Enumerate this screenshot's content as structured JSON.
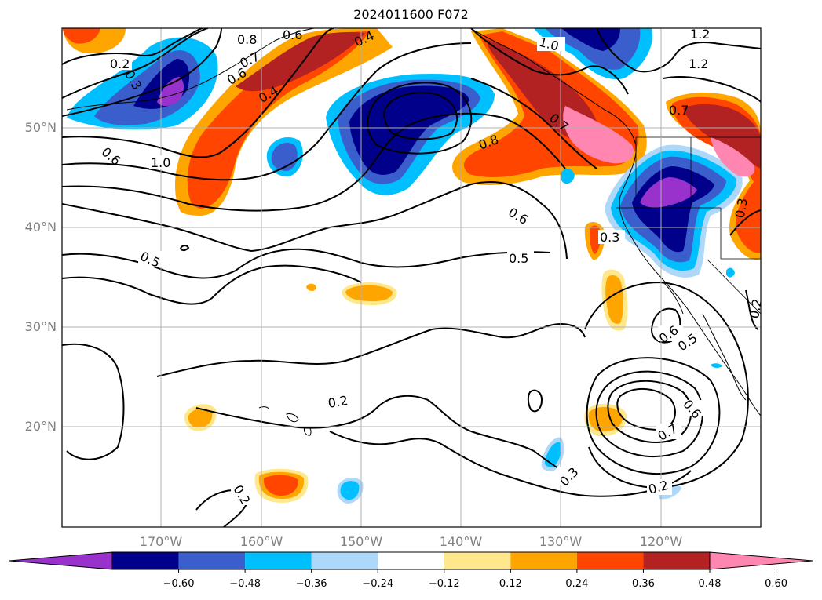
{
  "title": "2024011600 F072",
  "map": {
    "lat_labels": [
      "50°N",
      "40°N",
      "30°N",
      "20°N"
    ],
    "lon_labels": [
      "170°W",
      "160°W",
      "150°W",
      "140°W",
      "130°W",
      "120°W"
    ],
    "contour_labels": [
      "0.2",
      "0.3",
      "0.6",
      "0.8",
      "0.7",
      "0.6",
      "0.4",
      "0.4",
      "1.0",
      "1.2",
      "1.2",
      "0.7",
      "0.6",
      "1.0",
      "0.8",
      "0.7",
      "0.6",
      "0.5",
      "0.5",
      "0.3",
      "0.3",
      "0.2",
      "0.6",
      "0.5",
      "0.2",
      "0.6",
      "0.7",
      "0.3",
      "0.2",
      "0.2"
    ],
    "fill_colors": {
      "purple": "#9932cc",
      "navy": "#00008b",
      "royal_blue": "#3a5fcd",
      "deep_sky_blue": "#00bfff",
      "light_sky_blue": "#add8fa",
      "white": "#ffffff",
      "light_yellow": "#ffe88c",
      "orange": "#ffa500",
      "orange_red": "#ff4500",
      "firebrick": "#b22222",
      "pink": "#ff86b0"
    }
  },
  "colorbar": {
    "ticks": [
      "−0.60",
      "−0.48",
      "−0.36",
      "−0.24",
      "−0.12",
      "0.12",
      "0.24",
      "0.36",
      "0.48",
      "0.60"
    ],
    "colors": [
      "#9932cc",
      "#00008b",
      "#3a5fcd",
      "#00bfff",
      "#add8fa",
      "#ffffff",
      "#ffe88c",
      "#ffa500",
      "#ff4500",
      "#b22222",
      "#ff86b0"
    ]
  }
}
